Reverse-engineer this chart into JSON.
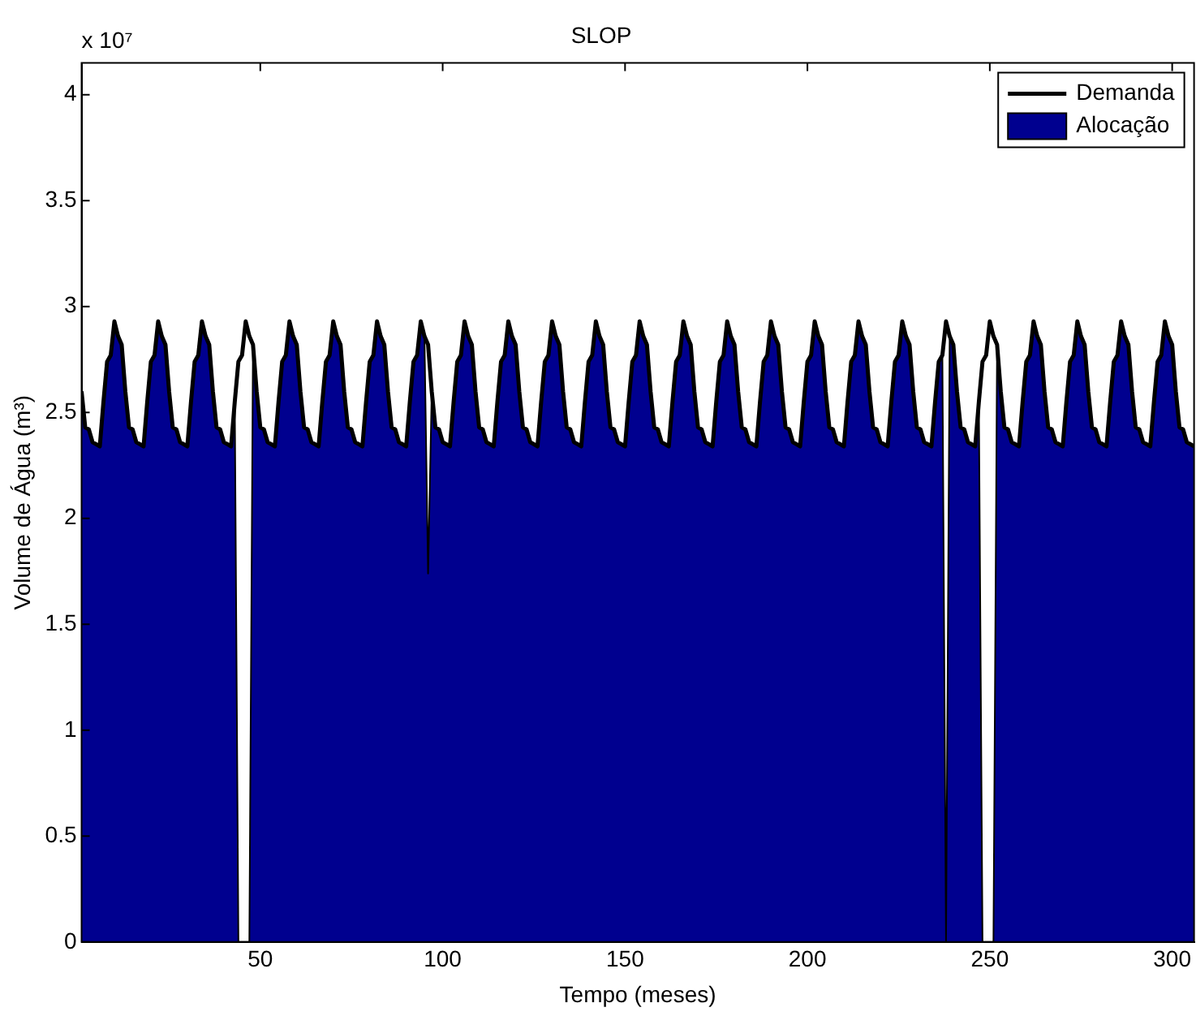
{
  "chart_data": {
    "type": "line",
    "title": "SLOP",
    "xlabel": "Tempo (meses)",
    "ylabel": "Volume de Água (m³)",
    "annotations": [
      "x 10⁷"
    ],
    "x": [
      1,
      2,
      3,
      4,
      5,
      6,
      7,
      8,
      9,
      10,
      11,
      12,
      13,
      14,
      15,
      16,
      17,
      18,
      19,
      20,
      21,
      22,
      23,
      24,
      25,
      26,
      27,
      28,
      29,
      30,
      31,
      32,
      33,
      34,
      35,
      36,
      37,
      38,
      39,
      40,
      41,
      42,
      43,
      44,
      45,
      46,
      47,
      48,
      49,
      50,
      51,
      52,
      53,
      54,
      55,
      56,
      57,
      58,
      59,
      60,
      61,
      62,
      63,
      64,
      65,
      66,
      67,
      68,
      69,
      70,
      71,
      72,
      73,
      74,
      75,
      76,
      77,
      78,
      79,
      80,
      81,
      82,
      83,
      84,
      85,
      86,
      87,
      88,
      89,
      90,
      91,
      92,
      93,
      94,
      95,
      96,
      97,
      98,
      99,
      100,
      101,
      102,
      103,
      104,
      105,
      106,
      107,
      108,
      109,
      110,
      111,
      112,
      113,
      114,
      115,
      116,
      117,
      118,
      119,
      120,
      121,
      122,
      123,
      124,
      125,
      126,
      127,
      128,
      129,
      130,
      131,
      132,
      133,
      134,
      135,
      136,
      137,
      138,
      139,
      140,
      141,
      142,
      143,
      144,
      145,
      146,
      147,
      148,
      149,
      150,
      151,
      152,
      153,
      154,
      155,
      156,
      157,
      158,
      159,
      160,
      161,
      162,
      163,
      164,
      165,
      166,
      167,
      168,
      169,
      170,
      171,
      172,
      173,
      174,
      175,
      176,
      177,
      178,
      179,
      180,
      181,
      182,
      183,
      184,
      185,
      186,
      187,
      188,
      189,
      190,
      191,
      192,
      193,
      194,
      195,
      196,
      197,
      198,
      199,
      200,
      201,
      202,
      203,
      204,
      205,
      206,
      207,
      208,
      209,
      210,
      211,
      212,
      213,
      214,
      215,
      216,
      217,
      218,
      219,
      220,
      221,
      222,
      223,
      224,
      225,
      226,
      227,
      228,
      229,
      230,
      231,
      232,
      233,
      234,
      235,
      236,
      237,
      238,
      239,
      240,
      241,
      242,
      243,
      244,
      245,
      246,
      247,
      248,
      249,
      250,
      251,
      252,
      253,
      254,
      255,
      256,
      257,
      258,
      259,
      260,
      261,
      262,
      263,
      264,
      265,
      266,
      267,
      268,
      269,
      270,
      271,
      272,
      273,
      274,
      275,
      276,
      277,
      278,
      279,
      280,
      281,
      282,
      283,
      284,
      285,
      286,
      287,
      288,
      289,
      290,
      291,
      292,
      293,
      294,
      295,
      296,
      297,
      298,
      299,
      300,
      301,
      302,
      303,
      304,
      305,
      306
    ],
    "series": [
      {
        "name": "Demanda",
        "type": "line",
        "color": "#000000",
        "values": [
          2.6,
          2.43,
          2.42,
          2.36,
          2.35,
          2.34,
          2.55,
          2.74,
          2.77,
          2.93,
          2.86,
          2.82,
          2.6,
          2.43,
          2.42,
          2.36,
          2.35,
          2.34,
          2.55,
          2.74,
          2.77,
          2.93,
          2.86,
          2.82,
          2.6,
          2.43,
          2.42,
          2.36,
          2.35,
          2.34,
          2.55,
          2.74,
          2.77,
          2.93,
          2.86,
          2.82,
          2.6,
          2.43,
          2.42,
          2.36,
          2.35,
          2.34,
          2.55,
          2.74,
          2.77,
          2.93,
          2.86,
          2.82,
          2.6,
          2.43,
          2.42,
          2.36,
          2.35,
          2.34,
          2.55,
          2.74,
          2.77,
          2.93,
          2.86,
          2.82,
          2.6,
          2.43,
          2.42,
          2.36,
          2.35,
          2.34,
          2.55,
          2.74,
          2.77,
          2.93,
          2.86,
          2.82,
          2.6,
          2.43,
          2.42,
          2.36,
          2.35,
          2.34,
          2.55,
          2.74,
          2.77,
          2.93,
          2.86,
          2.82,
          2.6,
          2.43,
          2.42,
          2.36,
          2.35,
          2.34,
          2.55,
          2.74,
          2.77,
          2.93,
          2.86,
          2.82,
          2.6,
          2.43,
          2.42,
          2.36,
          2.35,
          2.34,
          2.55,
          2.74,
          2.77,
          2.93,
          2.86,
          2.82,
          2.6,
          2.43,
          2.42,
          2.36,
          2.35,
          2.34,
          2.55,
          2.74,
          2.77,
          2.93,
          2.86,
          2.82,
          2.6,
          2.43,
          2.42,
          2.36,
          2.35,
          2.34,
          2.55,
          2.74,
          2.77,
          2.93,
          2.86,
          2.82,
          2.6,
          2.43,
          2.42,
          2.36,
          2.35,
          2.34,
          2.55,
          2.74,
          2.77,
          2.93,
          2.86,
          2.82,
          2.6,
          2.43,
          2.42,
          2.36,
          2.35,
          2.34,
          2.55,
          2.74,
          2.77,
          2.93,
          2.86,
          2.82,
          2.6,
          2.43,
          2.42,
          2.36,
          2.35,
          2.34,
          2.55,
          2.74,
          2.77,
          2.93,
          2.86,
          2.82,
          2.6,
          2.43,
          2.42,
          2.36,
          2.35,
          2.34,
          2.55,
          2.74,
          2.77,
          2.93,
          2.86,
          2.82,
          2.6,
          2.43,
          2.42,
          2.36,
          2.35,
          2.34,
          2.55,
          2.74,
          2.77,
          2.93,
          2.86,
          2.82,
          2.6,
          2.43,
          2.42,
          2.36,
          2.35,
          2.34,
          2.55,
          2.74,
          2.77,
          2.93,
          2.86,
          2.82,
          2.6,
          2.43,
          2.42,
          2.36,
          2.35,
          2.34,
          2.55,
          2.74,
          2.77,
          2.93,
          2.86,
          2.82,
          2.6,
          2.43,
          2.42,
          2.36,
          2.35,
          2.34,
          2.55,
          2.74,
          2.77,
          2.93,
          2.86,
          2.82,
          2.6,
          2.43,
          2.42,
          2.36,
          2.35,
          2.34,
          2.55,
          2.74,
          2.77,
          2.93,
          2.86,
          2.82,
          2.6,
          2.43,
          2.42,
          2.36,
          2.35,
          2.34,
          2.55,
          2.74,
          2.77,
          2.93,
          2.86,
          2.82,
          2.6,
          2.43,
          2.42,
          2.36,
          2.35,
          2.34,
          2.55,
          2.74,
          2.77,
          2.93,
          2.86,
          2.82,
          2.6,
          2.43,
          2.42,
          2.36,
          2.35,
          2.34,
          2.55,
          2.74,
          2.77,
          2.93,
          2.86,
          2.82,
          2.6,
          2.43,
          2.42,
          2.36,
          2.35,
          2.34,
          2.55,
          2.74,
          2.77,
          2.93,
          2.86,
          2.82,
          2.6,
          2.43,
          2.42,
          2.36,
          2.35,
          2.34,
          2.55,
          2.74,
          2.77,
          2.93,
          2.86,
          2.82,
          2.6,
          2.43,
          2.42,
          2.36,
          2.35,
          2.34
        ]
      },
      {
        "name": "Alocação",
        "type": "area",
        "color": "#00008f",
        "values": [
          2.6,
          2.43,
          2.42,
          2.36,
          2.35,
          2.34,
          2.55,
          2.74,
          2.77,
          2.93,
          2.86,
          2.82,
          2.6,
          2.43,
          2.42,
          2.36,
          2.35,
          2.34,
          2.55,
          2.74,
          2.77,
          2.93,
          2.86,
          2.82,
          2.6,
          2.43,
          2.42,
          2.36,
          2.35,
          2.34,
          2.55,
          2.74,
          2.77,
          2.93,
          2.86,
          2.82,
          2.6,
          2.43,
          2.42,
          2.36,
          2.35,
          2.34,
          2.55,
          0,
          0,
          0,
          0,
          2.82,
          2.6,
          2.43,
          2.42,
          2.36,
          2.35,
          2.34,
          2.55,
          2.74,
          2.77,
          2.93,
          2.86,
          2.82,
          2.6,
          2.43,
          2.42,
          2.36,
          2.35,
          2.34,
          2.55,
          2.74,
          2.77,
          2.93,
          2.86,
          2.82,
          2.6,
          2.43,
          2.42,
          2.36,
          2.35,
          2.34,
          2.55,
          2.74,
          2.77,
          2.93,
          2.86,
          2.82,
          2.6,
          2.43,
          2.42,
          2.36,
          2.35,
          2.34,
          2.55,
          2.74,
          2.77,
          2.93,
          2.86,
          1.74,
          2.6,
          2.43,
          2.42,
          2.36,
          2.35,
          2.34,
          2.55,
          2.74,
          2.77,
          2.93,
          2.86,
          2.82,
          2.6,
          2.43,
          2.42,
          2.36,
          2.35,
          2.34,
          2.55,
          2.74,
          2.77,
          2.93,
          2.86,
          2.82,
          2.6,
          2.43,
          2.42,
          2.36,
          2.35,
          2.34,
          2.55,
          2.74,
          2.77,
          2.93,
          2.86,
          2.82,
          2.6,
          2.43,
          2.42,
          2.36,
          2.35,
          2.34,
          2.55,
          2.74,
          2.77,
          2.93,
          2.86,
          2.82,
          2.6,
          2.43,
          2.42,
          2.36,
          2.35,
          2.34,
          2.55,
          2.74,
          2.77,
          2.93,
          2.86,
          2.82,
          2.6,
          2.43,
          2.42,
          2.36,
          2.35,
          2.34,
          2.55,
          2.74,
          2.77,
          2.93,
          2.86,
          2.82,
          2.6,
          2.43,
          2.42,
          2.36,
          2.35,
          2.34,
          2.55,
          2.74,
          2.77,
          2.93,
          2.86,
          2.82,
          2.6,
          2.43,
          2.42,
          2.36,
          2.35,
          2.34,
          2.55,
          2.74,
          2.77,
          2.93,
          2.86,
          2.82,
          2.6,
          2.43,
          2.42,
          2.36,
          2.35,
          2.34,
          2.55,
          2.74,
          2.77,
          2.93,
          2.86,
          2.82,
          2.6,
          2.43,
          2.42,
          2.36,
          2.35,
          2.34,
          2.55,
          2.74,
          2.77,
          2.93,
          2.86,
          2.82,
          2.6,
          2.43,
          2.42,
          2.36,
          2.35,
          2.34,
          2.55,
          2.74,
          2.77,
          2.93,
          2.86,
          2.82,
          2.6,
          2.43,
          2.42,
          2.36,
          2.35,
          2.34,
          2.55,
          2.74,
          2.77,
          0,
          2.86,
          2.82,
          2.6,
          2.43,
          2.42,
          2.36,
          2.35,
          2.34,
          2.55,
          0,
          0,
          0,
          0,
          2.82,
          2.6,
          2.43,
          2.42,
          2.36,
          2.35,
          2.34,
          2.55,
          2.74,
          2.77,
          2.93,
          2.86,
          2.82,
          2.6,
          2.43,
          2.42,
          2.36,
          2.35,
          2.34,
          2.55,
          2.74,
          2.77,
          2.93,
          2.86,
          2.82,
          2.6,
          2.43,
          2.42,
          2.36,
          2.35,
          2.34,
          2.55,
          2.74,
          2.77,
          2.93,
          2.86,
          2.82,
          2.6,
          2.43,
          2.42,
          2.36,
          2.35,
          2.34,
          2.55,
          2.74,
          2.77,
          2.93,
          2.86,
          2.82,
          2.6,
          2.43,
          2.42,
          2.36,
          2.35,
          2.34
        ]
      }
    ],
    "xlim": [
      1,
      306
    ],
    "xticks": [
      50,
      100,
      150,
      200,
      250,
      300
    ],
    "ylim": [
      0,
      4.15
    ],
    "yticks": [
      0,
      0.5,
      1,
      1.5,
      2,
      2.5,
      3,
      3.5,
      4
    ],
    "legend": "top right"
  }
}
